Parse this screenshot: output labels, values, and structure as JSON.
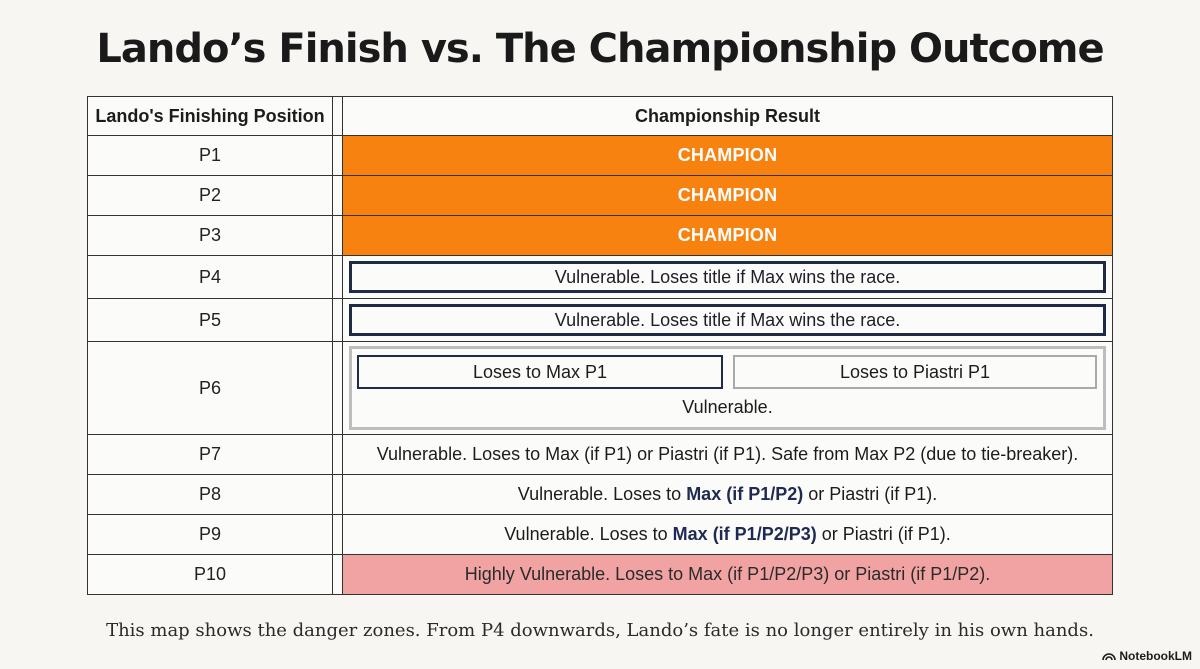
{
  "title": "Lando’s Finish vs. The Championship Outcome",
  "table": {
    "headers": {
      "position": "Lando's Finishing Position",
      "result": "Championship Result"
    },
    "rows": [
      {
        "pos": "P1",
        "result": "CHAMPION"
      },
      {
        "pos": "P2",
        "result": "CHAMPION"
      },
      {
        "pos": "P3",
        "result": "CHAMPION"
      },
      {
        "pos": "P4",
        "result": "Vulnerable. Loses title if Max wins the race."
      },
      {
        "pos": "P5",
        "result": "Vulnerable. Loses title if Max wins the race."
      },
      {
        "pos": "P6",
        "box_a": "Loses to Max P1",
        "box_b": "Loses to Piastri P1",
        "result": "Vulnerable."
      },
      {
        "pos": "P7",
        "result": "Vulnerable. Loses to Max (if P1) or Piastri (if P1). Safe from Max P2 (due to tie-breaker)."
      },
      {
        "pos": "P8",
        "pre": "Vulnerable. Loses to ",
        "bold": "Max (if P1/P2)",
        "post": " or Piastri (if P1)."
      },
      {
        "pos": "P9",
        "pre": "Vulnerable. Loses to ",
        "bold": "Max (if P1/P2/P3)",
        "post": " or Piastri (if P1)."
      },
      {
        "pos": "P10",
        "result": "Highly Vulnerable. Loses to Max (if P1/P2/P3) or Piastri (if P1/P2)."
      }
    ]
  },
  "caption": "This map shows the danger zones. From P4 downwards, Lando’s fate is no longer entirely in his own hands.",
  "brand": "NotebookLM",
  "colors": {
    "champion": "#f7820f",
    "danger": "#f1a3a3",
    "navy": "#1f2a44"
  }
}
